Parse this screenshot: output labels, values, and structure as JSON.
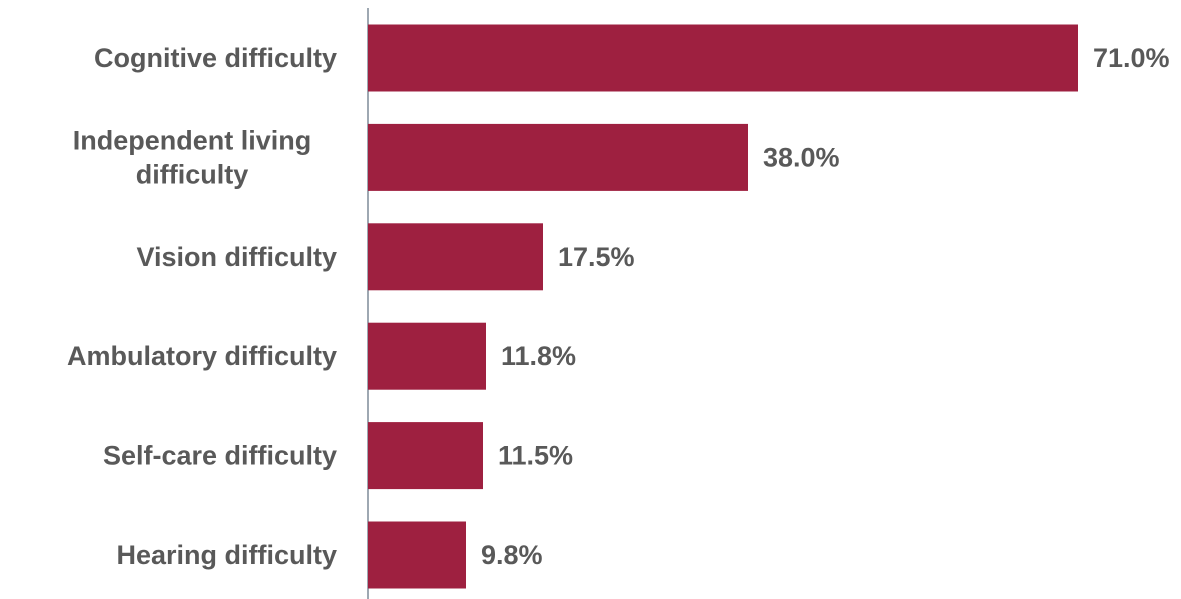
{
  "colors": {
    "bar": "#9e2040",
    "text": "#595959",
    "axis": "#7f8c99",
    "background": "#ffffff"
  },
  "chart_data": {
    "type": "bar",
    "orientation": "horizontal",
    "title": "",
    "xlabel": "",
    "ylabel": "",
    "categories": [
      "Cognitive difficulty",
      "Independent living difficulty",
      "Vision difficulty",
      "Ambulatory difficulty",
      "Self-care difficulty",
      "Hearing difficulty"
    ],
    "category_label_lines": [
      [
        "Cognitive difficulty"
      ],
      [
        "Independent living",
        "difficulty"
      ],
      [
        "Vision difficulty"
      ],
      [
        "Ambulatory difficulty"
      ],
      [
        "Self-care difficulty"
      ],
      [
        "Hearing difficulty"
      ]
    ],
    "values": [
      71.0,
      38.0,
      17.5,
      11.8,
      11.5,
      9.8
    ],
    "value_labels": [
      "71.0%",
      "38.0%",
      "17.5%",
      "11.8%",
      "11.5%",
      "9.8%"
    ],
    "xlim": [
      0,
      71
    ],
    "grid": false,
    "legend": "none"
  }
}
